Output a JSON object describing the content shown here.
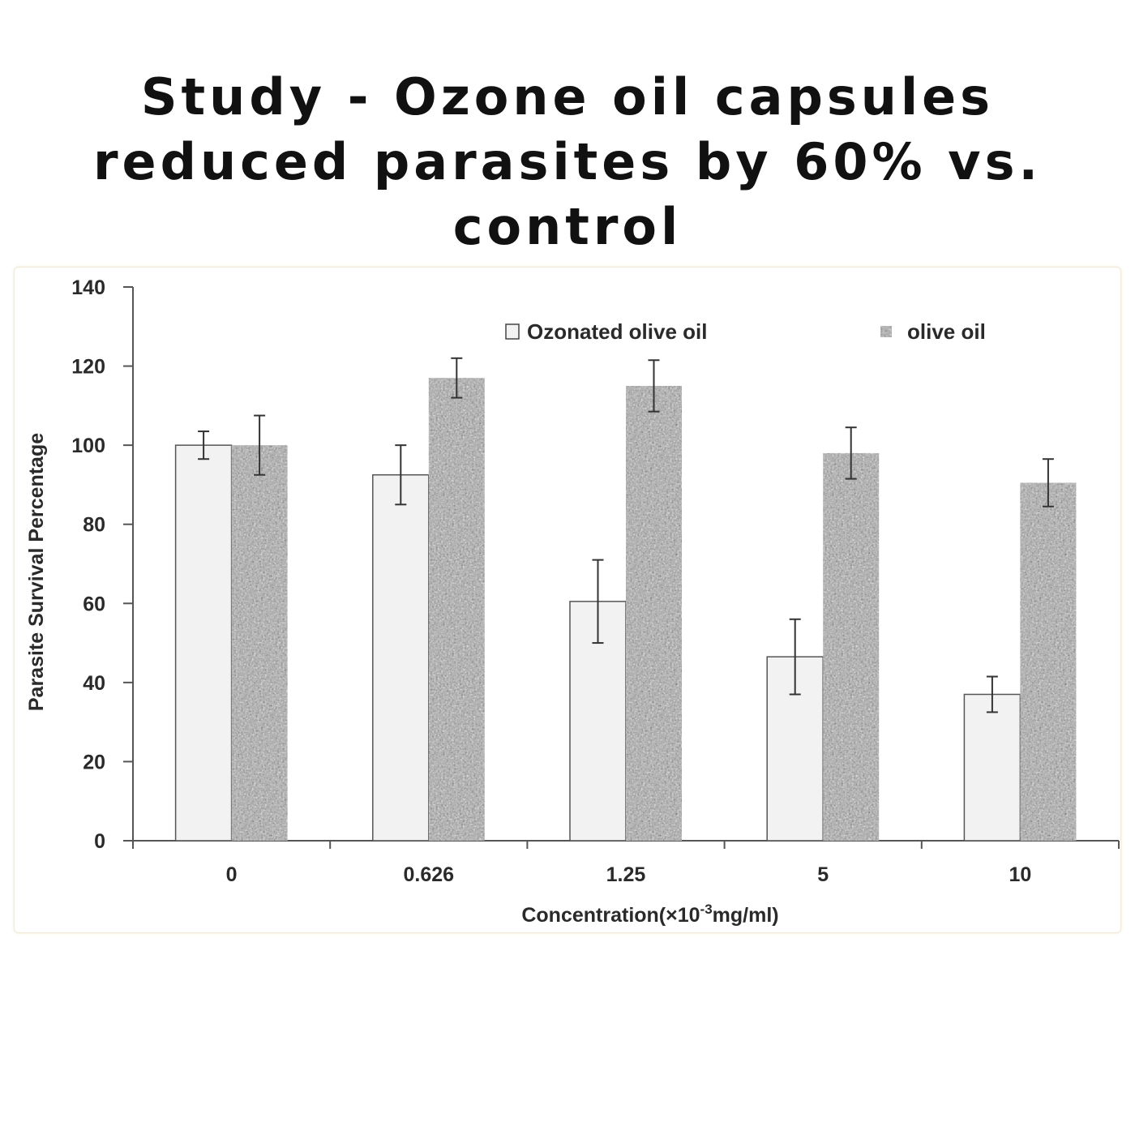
{
  "headline": {
    "line1": "Study - Ozone oil capsules",
    "line2": "reduced parasites by 60% vs.",
    "line3": "control"
  },
  "chart_data": {
    "type": "bar",
    "categories": [
      "0",
      "0.626",
      "1.25",
      "5",
      "10"
    ],
    "series": [
      {
        "name": "Ozonated olive oil",
        "values": [
          100,
          92.5,
          60.5,
          46.5,
          37
        ],
        "errors": [
          3.5,
          7.5,
          10.5,
          9.5,
          4.5
        ],
        "color": "#f2f2f2"
      },
      {
        "name": "olive oil",
        "values": [
          100,
          117,
          115,
          98,
          90.5
        ],
        "errors": [
          7.5,
          5,
          6.5,
          6.5,
          6
        ],
        "color": "#a9a9a9"
      }
    ],
    "xlabel": "Concentration(×10",
    "xlabel_sup": "-3",
    "xlabel_suffix": "mg/ml)",
    "ylabel": "Parasite Survival Percentage",
    "ylim": [
      0,
      140
    ],
    "yticks": [
      0,
      20,
      40,
      60,
      80,
      100,
      120,
      140
    ],
    "grid": false,
    "legend_position": "top-right"
  }
}
